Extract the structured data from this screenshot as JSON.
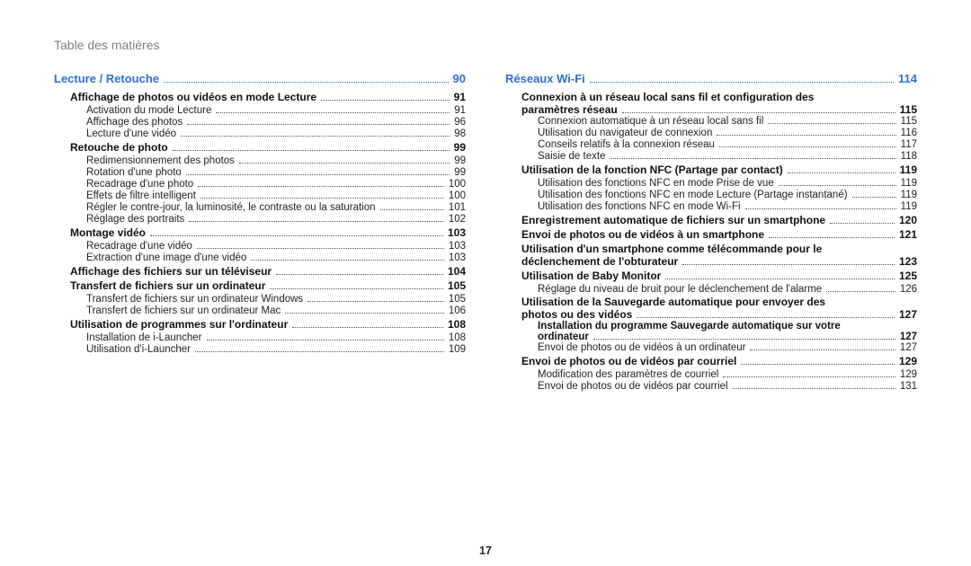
{
  "header": "Table des matières",
  "pageNumber": "17",
  "left": {
    "section": {
      "title": "Lecture / Retouche",
      "page": "90"
    },
    "rows": [
      {
        "type": "bold",
        "indent": 1,
        "title": "Affichage de photos ou vidéos en mode Lecture",
        "page": "91"
      },
      {
        "type": "plain",
        "indent": 2,
        "title": "Activation du mode Lecture",
        "page": "91"
      },
      {
        "type": "plain",
        "indent": 2,
        "title": "Affichage des photos",
        "page": "96"
      },
      {
        "type": "plain",
        "indent": 2,
        "title": "Lecture d'une vidéo",
        "page": "98"
      },
      {
        "type": "bold",
        "indent": 1,
        "title": "Retouche de photo",
        "page": "99"
      },
      {
        "type": "plain",
        "indent": 2,
        "title": "Redimensionnement des photos",
        "page": "99"
      },
      {
        "type": "plain",
        "indent": 2,
        "title": "Rotation d'une photo",
        "page": "99"
      },
      {
        "type": "plain",
        "indent": 2,
        "title": "Recadrage d'une photo",
        "page": "100"
      },
      {
        "type": "plain",
        "indent": 2,
        "title": "Effets de filtre intelligent",
        "page": "100"
      },
      {
        "type": "plain",
        "indent": 2,
        "title": "Régler le contre-jour, la luminosité, le contraste ou la saturation",
        "page": "101"
      },
      {
        "type": "plain",
        "indent": 2,
        "title": "Réglage des portraits",
        "page": "102"
      },
      {
        "type": "bold",
        "indent": 1,
        "title": "Montage vidéo",
        "page": "103"
      },
      {
        "type": "plain",
        "indent": 2,
        "title": "Recadrage d'une vidéo",
        "page": "103"
      },
      {
        "type": "plain",
        "indent": 2,
        "title": "Extraction d'une image d'une vidéo",
        "page": "103"
      },
      {
        "type": "bold",
        "indent": 1,
        "title": "Affichage des fichiers sur un téléviseur",
        "page": "104"
      },
      {
        "type": "bold",
        "indent": 1,
        "title": "Transfert de fichiers sur un ordinateur",
        "page": "105"
      },
      {
        "type": "plain",
        "indent": 2,
        "title": "Transfert de fichiers sur un ordinateur Windows",
        "page": "105"
      },
      {
        "type": "plain",
        "indent": 2,
        "title": "Transfert de fichiers sur un ordinateur Mac",
        "page": "106"
      },
      {
        "type": "bold",
        "indent": 1,
        "title": "Utilisation de programmes sur l'ordinateur",
        "page": "108"
      },
      {
        "type": "plain",
        "indent": 2,
        "title": "Installation de i-Launcher",
        "page": "108"
      },
      {
        "type": "plain",
        "indent": 2,
        "title": "Utilisation d'i-Launcher",
        "page": "109"
      }
    ]
  },
  "right": {
    "section": {
      "title": "Réseaux Wi-Fi",
      "page": "114"
    },
    "rows": [
      {
        "type": "bold-multi",
        "indent": 1,
        "line1": "Connexion à un réseau local sans fil et configuration des",
        "line2": "paramètres réseau",
        "page": "115"
      },
      {
        "type": "plain",
        "indent": 2,
        "title": "Connexion automatique à un réseau local sans fil",
        "page": "115"
      },
      {
        "type": "plain",
        "indent": 2,
        "title": "Utilisation du navigateur de connexion",
        "page": "116"
      },
      {
        "type": "plain",
        "indent": 2,
        "title": "Conseils relatifs à la connexion réseau",
        "page": "117"
      },
      {
        "type": "plain",
        "indent": 2,
        "title": "Saisie de texte",
        "page": "118"
      },
      {
        "type": "bold",
        "indent": 1,
        "title": "Utilisation de la fonction NFC (Partage par contact)",
        "page": "119"
      },
      {
        "type": "plain",
        "indent": 2,
        "title": "Utilisation des fonctions NFC en mode Prise de vue",
        "page": "119"
      },
      {
        "type": "plain",
        "indent": 2,
        "title": "Utilisation des fonctions NFC en mode Lecture (Partage instantané)",
        "page": "119"
      },
      {
        "type": "plain",
        "indent": 2,
        "title": "Utilisation des fonctions NFC en mode Wi-Fi",
        "page": "119"
      },
      {
        "type": "bold",
        "indent": 1,
        "title": "Enregistrement automatique de fichiers sur un smartphone",
        "page": "120"
      },
      {
        "type": "bold",
        "indent": 1,
        "title": "Envoi de photos ou de vidéos à un smartphone",
        "page": "121"
      },
      {
        "type": "bold-multi",
        "indent": 1,
        "line1": "Utilisation d'un smartphone comme télécommande pour le",
        "line2": "déclenchement de l'obturateur",
        "page": "123"
      },
      {
        "type": "bold",
        "indent": 1,
        "title": "Utilisation de Baby Monitor",
        "page": "125"
      },
      {
        "type": "plain",
        "indent": 2,
        "title": "Réglage du niveau de bruit pour le déclenchement de l'alarme",
        "page": "126"
      },
      {
        "type": "bold-multi",
        "indent": 1,
        "line1": "Utilisation de la Sauvegarde automatique pour envoyer des",
        "line2": "photos ou des vidéos",
        "page": "127"
      },
      {
        "type": "plain-multi",
        "indent": 2,
        "line1": "Installation du programme Sauvegarde automatique sur votre",
        "line2": "ordinateur",
        "page": "127"
      },
      {
        "type": "plain",
        "indent": 2,
        "title": "Envoi de photos ou de vidéos à un ordinateur",
        "page": "127"
      },
      {
        "type": "bold",
        "indent": 1,
        "title": "Envoi de photos ou de vidéos par courriel",
        "page": "129"
      },
      {
        "type": "plain",
        "indent": 2,
        "title": "Modification des paramètres de courriel",
        "page": "129"
      },
      {
        "type": "plain",
        "indent": 2,
        "title": "Envoi de photos ou de vidéos par courriel",
        "page": "131"
      }
    ]
  }
}
